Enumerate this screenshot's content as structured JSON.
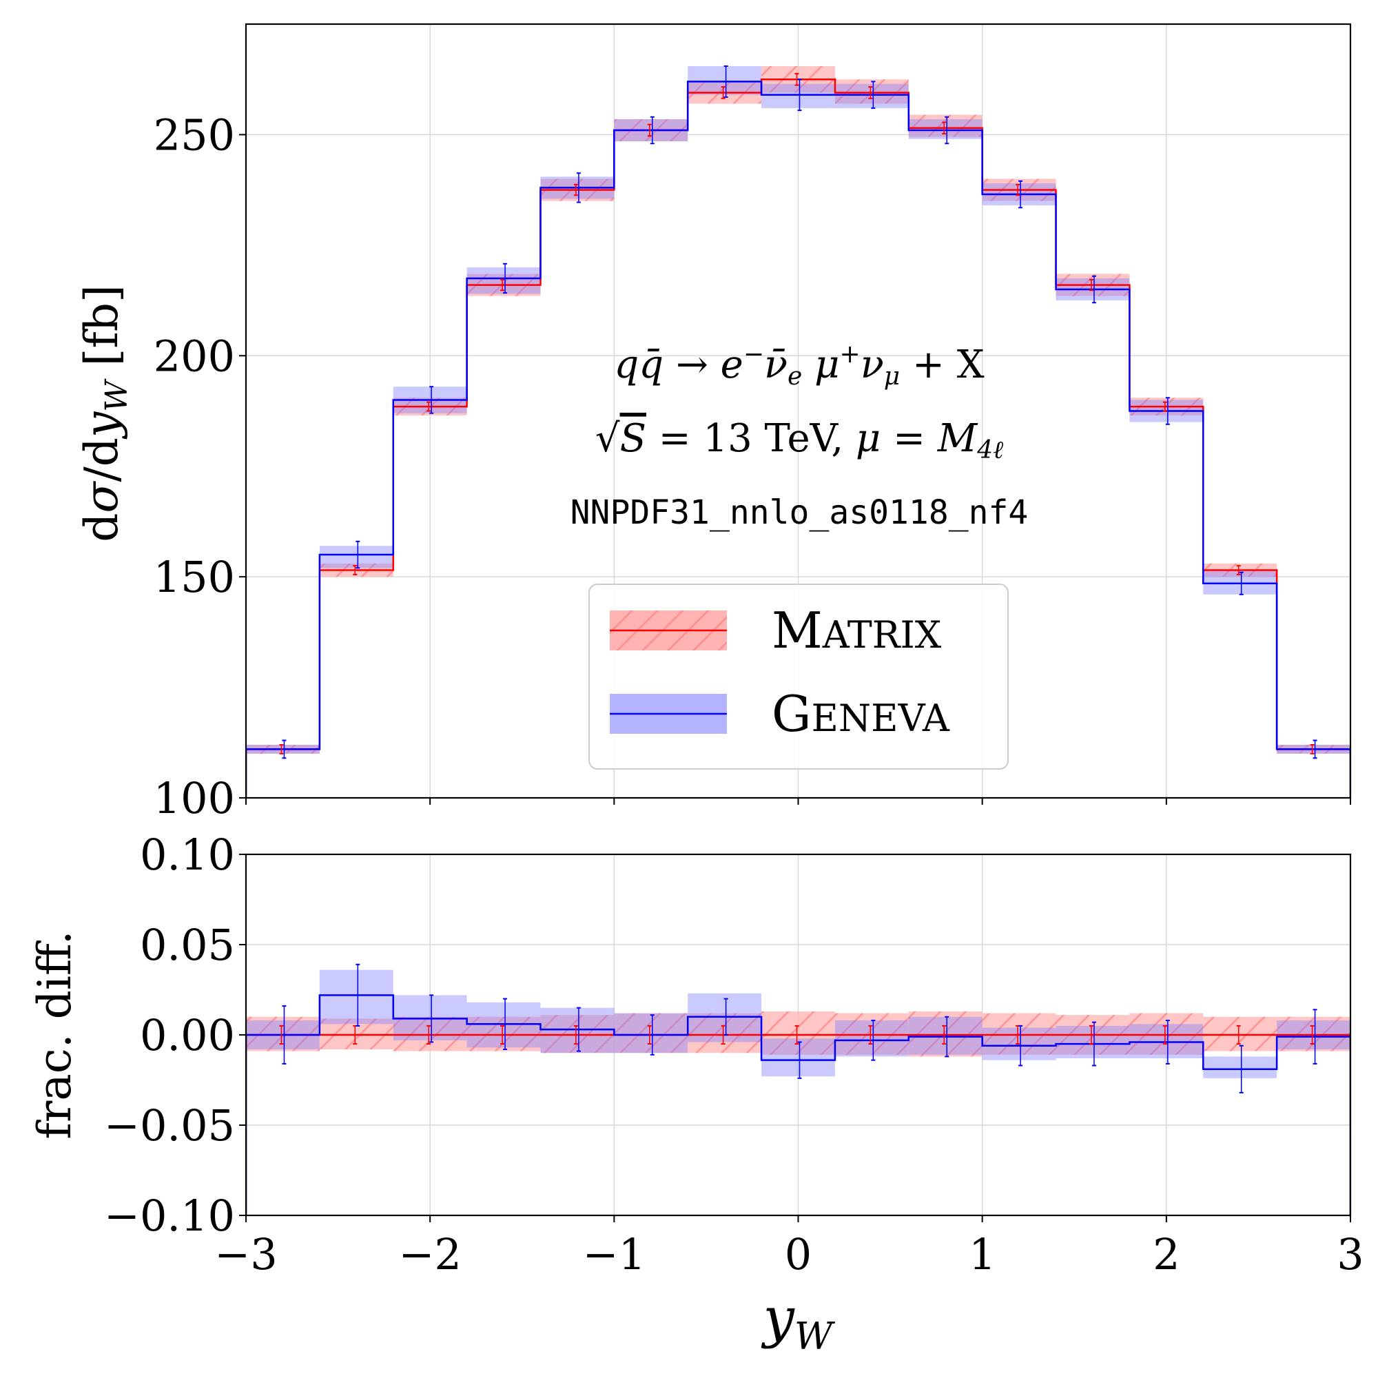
{
  "chart_data": [
    {
      "type": "step",
      "panel": "main",
      "ylabel": "dσ/dy_W [fb]",
      "ylabel_parts": {
        "a": "d",
        "b": "σ",
        "c": "/d",
        "d": "y",
        "e": "W",
        "f": " [fb]"
      },
      "xlim": [
        -3,
        3
      ],
      "ylim": [
        100,
        275
      ],
      "yticks": [
        100,
        150,
        200,
        250
      ],
      "ytick_labels": [
        "100",
        "150",
        "200",
        "250"
      ],
      "grid": true,
      "bin_edges": [
        -3.0,
        -2.6,
        -2.2,
        -1.8,
        -1.4,
        -1.0,
        -0.6,
        -0.2,
        0.2,
        0.6,
        1.0,
        1.4,
        1.8,
        2.2,
        2.6,
        3.0
      ],
      "annotations": {
        "process": {
          "q": "q",
          "qbar": "q̄",
          "arrow": " → ",
          "e": "e",
          "eminus": "−",
          "nubar": "ν̄",
          "nusube": "e",
          "mu": " μ",
          "muplus": "+",
          "nu": "ν",
          "nusubmu": "μ",
          "plusx": " + X"
        },
        "energy": {
          "sqrt": "√",
          "s": "S",
          "eq": " = 13 TeV, ",
          "mu": "μ",
          "eq2": " = ",
          "m": "M",
          "msub": "4ℓ"
        },
        "pdf": "NNPDF31_nnlo_as0118_nf4"
      },
      "legend": {
        "position": "lower-center",
        "entries": [
          {
            "big": "M",
            "small": "ATRIX",
            "label": "Matrix",
            "color": "#ff0000",
            "band": "#ffb3b3"
          },
          {
            "big": "G",
            "small": "ENEVA",
            "label": "Geneva",
            "color": "#0000ff",
            "band": "#b3b3ff"
          }
        ]
      },
      "series": [
        {
          "name": "Matrix",
          "color": "#ff0000",
          "values": [
            111.0,
            151.5,
            188.5,
            216.0,
            237.5,
            251.0,
            259.5,
            262.5,
            259.5,
            251.5,
            237.5,
            216.0,
            188.5,
            151.5,
            111.0
          ],
          "band_lo": [
            110.0,
            150.0,
            186.5,
            213.5,
            235.0,
            248.5,
            257.0,
            259.5,
            257.0,
            249.5,
            235.0,
            213.5,
            186.5,
            150.0,
            110.0
          ],
          "band_hi": [
            112.0,
            153.0,
            190.5,
            218.5,
            240.0,
            253.5,
            262.0,
            265.5,
            262.5,
            254.5,
            240.0,
            218.5,
            190.5,
            153.0,
            112.0
          ],
          "err": [
            1.0,
            1.0,
            1.0,
            1.2,
            1.2,
            1.3,
            1.3,
            1.3,
            1.3,
            1.3,
            1.2,
            1.2,
            1.0,
            1.0,
            1.0
          ]
        },
        {
          "name": "Geneva",
          "color": "#0000ff",
          "values": [
            111.0,
            155.0,
            190.0,
            217.5,
            238.0,
            251.0,
            262.0,
            259.0,
            259.0,
            251.0,
            236.5,
            215.0,
            187.5,
            148.5,
            111.0
          ],
          "band_lo": [
            110.0,
            152.0,
            187.0,
            214.0,
            235.5,
            248.5,
            259.0,
            256.0,
            256.0,
            249.0,
            234.0,
            212.5,
            185.0,
            146.0,
            110.0
          ],
          "band_hi": [
            112.0,
            157.0,
            193.0,
            220.0,
            240.5,
            253.5,
            265.5,
            261.5,
            261.5,
            253.5,
            239.0,
            217.5,
            190.0,
            151.5,
            112.0
          ],
          "err": [
            2.0,
            3.0,
            3.0,
            3.3,
            3.3,
            3.0,
            3.5,
            3.5,
            3.0,
            3.0,
            3.0,
            3.0,
            3.0,
            2.5,
            2.0
          ]
        }
      ]
    },
    {
      "type": "step",
      "panel": "ratio",
      "ylabel": "frac. diff.",
      "xlabel_parts": {
        "y": "y",
        "sub": "W"
      },
      "xlim": [
        -3,
        3
      ],
      "ylim": [
        -0.1,
        0.1
      ],
      "yticks": [
        -0.1,
        -0.05,
        0.0,
        0.05,
        0.1
      ],
      "ytick_labels": [
        "−0.10",
        "−0.05",
        "0.00",
        "0.05",
        "0.10"
      ],
      "xticks": [
        -3,
        -2,
        -1,
        0,
        1,
        2,
        3
      ],
      "xtick_labels": [
        "−3",
        "−2",
        "−1",
        "0",
        "1",
        "2",
        "3"
      ],
      "grid": true,
      "bin_edges": [
        -3.0,
        -2.6,
        -2.2,
        -1.8,
        -1.4,
        -1.0,
        -0.6,
        -0.2,
        0.2,
        0.6,
        1.0,
        1.4,
        1.8,
        2.2,
        2.6,
        3.0
      ],
      "series": [
        {
          "name": "Matrix",
          "color": "#ff0000",
          "values": [
            0.0,
            0.0,
            0.0,
            0.0,
            0.0,
            0.0,
            0.0,
            0.0,
            0.0,
            0.0,
            0.0,
            0.0,
            0.0,
            0.0,
            0.0
          ],
          "band_lo": [
            -0.009,
            -0.008,
            -0.009,
            -0.009,
            -0.01,
            -0.01,
            -0.01,
            -0.011,
            -0.011,
            -0.012,
            -0.011,
            -0.011,
            -0.011,
            -0.009,
            -0.009
          ],
          "band_hi": [
            0.01,
            0.009,
            0.01,
            0.01,
            0.011,
            0.012,
            0.012,
            0.013,
            0.012,
            0.013,
            0.012,
            0.011,
            0.012,
            0.01,
            0.01
          ],
          "err": [
            0.005,
            0.005,
            0.005,
            0.005,
            0.005,
            0.005,
            0.005,
            0.005,
            0.005,
            0.005,
            0.005,
            0.005,
            0.005,
            0.005,
            0.005
          ]
        },
        {
          "name": "Geneva",
          "color": "#0000ff",
          "values": [
            0.0,
            0.022,
            0.009,
            0.006,
            0.003,
            0.0,
            0.01,
            -0.014,
            -0.003,
            -0.001,
            -0.006,
            -0.005,
            -0.004,
            -0.019,
            -0.001
          ],
          "band_lo": [
            -0.008,
            0.006,
            -0.003,
            -0.007,
            -0.01,
            -0.01,
            -0.004,
            -0.023,
            -0.012,
            -0.011,
            -0.014,
            -0.013,
            -0.013,
            -0.024,
            -0.008
          ],
          "band_hi": [
            0.008,
            0.036,
            0.022,
            0.018,
            0.015,
            0.012,
            0.023,
            -0.002,
            0.008,
            0.01,
            0.004,
            0.005,
            0.006,
            -0.012,
            0.008
          ],
          "err": [
            0.016,
            0.017,
            0.013,
            0.014,
            0.012,
            0.011,
            0.01,
            0.01,
            0.011,
            0.011,
            0.011,
            0.012,
            0.012,
            0.013,
            0.015
          ]
        }
      ]
    }
  ]
}
